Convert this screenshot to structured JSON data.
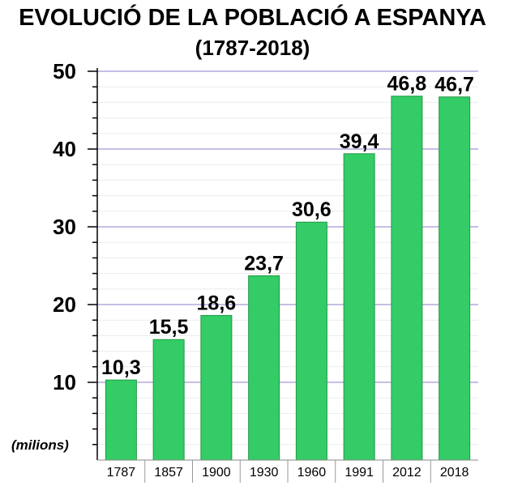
{
  "chart_data": {
    "type": "bar",
    "title": "EVOLUCIÓ DE LA POBLACIÓ A ESPANYA",
    "subtitle": "(1787-2018)",
    "unit_label": "(milions)",
    "categories": [
      "1787",
      "1857",
      "1900",
      "1930",
      "1960",
      "1991",
      "2012",
      "2018"
    ],
    "values": [
      10.3,
      15.5,
      18.6,
      23.7,
      30.6,
      39.4,
      46.8,
      46.7
    ],
    "data_labels": [
      "10,3",
      "15,5",
      "18,6",
      "23,7",
      "30,6",
      "39,4",
      "46,8",
      "46,7"
    ],
    "yticks": [
      "10",
      "20",
      "30",
      "40",
      "50"
    ],
    "ylim": [
      0,
      50
    ],
    "grid": true,
    "legend": "none",
    "colors": {
      "bar": "#33cc66",
      "bar_edge": "#229944",
      "grid_major": "#c8bde6",
      "grid_minor": "#ebebeb",
      "axis": "#000000"
    }
  }
}
